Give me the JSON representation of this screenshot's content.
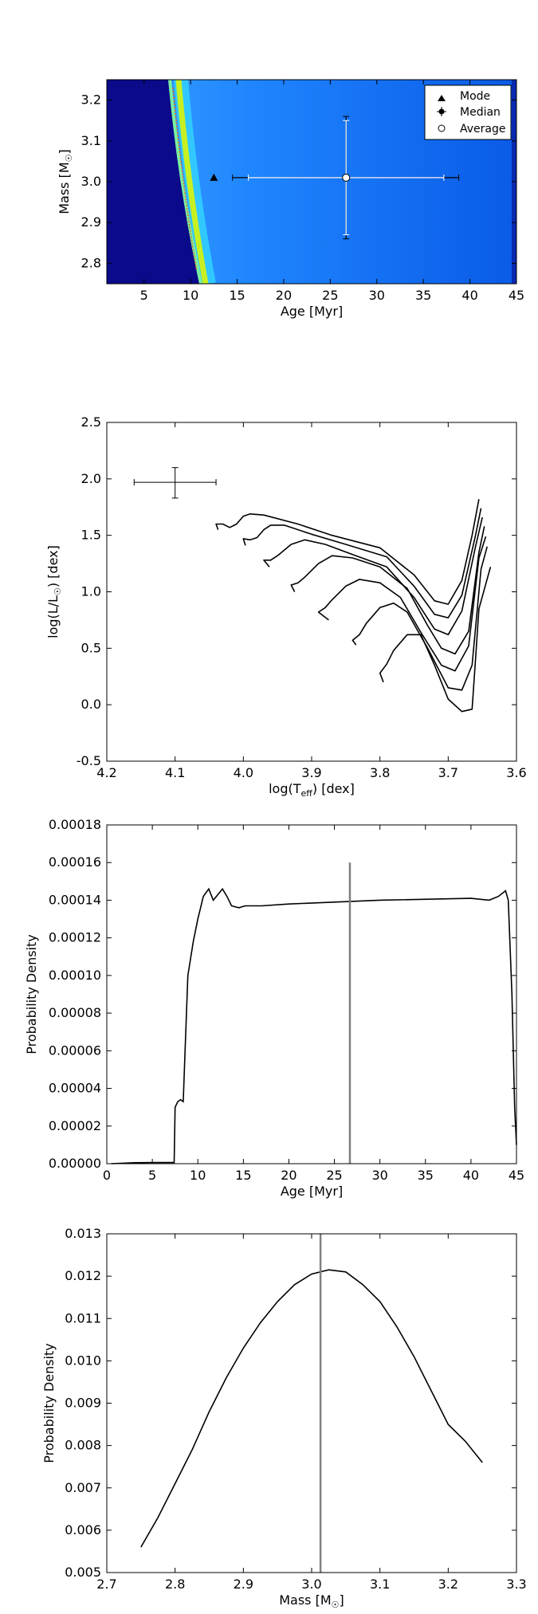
{
  "chart_data": [
    {
      "type": "heatmap",
      "xlabel": "Age [Myr]",
      "ylabel": "Mass [M",
      "ylabel_sub": "☉",
      "ylabel_end": "]",
      "xlim": [
        1,
        45
      ],
      "ylim": [
        2.75,
        3.25
      ],
      "xticks": [
        5,
        10,
        15,
        20,
        25,
        30,
        35,
        40,
        45
      ],
      "yticks": [
        2.8,
        2.9,
        3.0,
        3.1,
        3.2
      ],
      "ytick_format": 1,
      "legend": {
        "placement": "top-right",
        "entries": [
          {
            "label": "Mode",
            "marker": "triangle"
          },
          {
            "label": "Median",
            "marker": "errorbar-dot"
          },
          {
            "label": "Average",
            "marker": "open-circle"
          }
        ]
      },
      "mode": {
        "x": 12.5,
        "y": 3.01
      },
      "median": {
        "x": 26.7,
        "y": 3.01,
        "x_err_inner": [
          16.2,
          37.2
        ],
        "x_err_outer": [
          14.5,
          38.8
        ],
        "y_err_inner": [
          2.87,
          3.15
        ],
        "y_err_outer": [
          2.86,
          3.16
        ]
      },
      "average": {
        "x": 26.7,
        "y": 3.01
      },
      "colors": {
        "background": "#0a0a8a",
        "field": "#1e8cff",
        "ridge": "#c8f020",
        "ridge_core": "#e07020"
      }
    },
    {
      "type": "line",
      "xlabel": "log(T",
      "xlabel_sub": "eff",
      "xlabel_end": ") [dex]",
      "ylabel": "log(L/L",
      "ylabel_sub": "☉",
      "ylabel_end": ") [dex]",
      "xlim": [
        4.2,
        3.6
      ],
      "ylim": [
        -0.5,
        2.5
      ],
      "xticks": [
        4.2,
        4.1,
        4.0,
        3.9,
        3.8,
        3.7,
        3.6
      ],
      "yticks": [
        -0.5,
        0.0,
        0.5,
        1.0,
        1.5,
        2.0,
        2.5
      ],
      "ytick_format": 1,
      "xtick_format": 1,
      "errorbar": {
        "x": 4.1,
        "y": 1.97,
        "x_range": [
          4.16,
          4.04
        ],
        "y_range": [
          1.83,
          2.1
        ]
      },
      "series": [
        {
          "values": [
            [
              4.037,
              1.55
            ],
            [
              4.04,
              1.6
            ],
            [
              4.03,
              1.6
            ],
            [
              4.02,
              1.57
            ],
            [
              4.01,
              1.6
            ],
            [
              4.0,
              1.67
            ],
            [
              3.99,
              1.69
            ],
            [
              3.97,
              1.68
            ],
            [
              3.92,
              1.6
            ],
            [
              3.87,
              1.5
            ],
            [
              3.8,
              1.39
            ],
            [
              3.75,
              1.15
            ],
            [
              3.72,
              0.92
            ],
            [
              3.7,
              0.89
            ],
            [
              3.68,
              1.1
            ],
            [
              3.665,
              1.5
            ],
            [
              3.655,
              1.82
            ]
          ]
        },
        {
          "values": [
            [
              3.997,
              1.41
            ],
            [
              4.0,
              1.47
            ],
            [
              3.99,
              1.46
            ],
            [
              3.98,
              1.48
            ],
            [
              3.97,
              1.55
            ],
            [
              3.96,
              1.59
            ],
            [
              3.94,
              1.59
            ],
            [
              3.9,
              1.51
            ],
            [
              3.85,
              1.42
            ],
            [
              3.79,
              1.31
            ],
            [
              3.75,
              1.05
            ],
            [
              3.72,
              0.8
            ],
            [
              3.7,
              0.77
            ],
            [
              3.68,
              0.97
            ],
            [
              3.66,
              1.5
            ],
            [
              3.652,
              1.74
            ]
          ]
        },
        {
          "values": [
            [
              3.962,
              1.22
            ],
            [
              3.97,
              1.28
            ],
            [
              3.96,
              1.28
            ],
            [
              3.95,
              1.32
            ],
            [
              3.93,
              1.42
            ],
            [
              3.91,
              1.46
            ],
            [
              3.88,
              1.42
            ],
            [
              3.84,
              1.33
            ],
            [
              3.79,
              1.22
            ],
            [
              3.75,
              0.95
            ],
            [
              3.72,
              0.67
            ],
            [
              3.7,
              0.62
            ],
            [
              3.68,
              0.83
            ],
            [
              3.66,
              1.4
            ],
            [
              3.65,
              1.66
            ]
          ]
        },
        {
          "values": [
            [
              3.925,
              1.0
            ],
            [
              3.93,
              1.06
            ],
            [
              3.92,
              1.08
            ],
            [
              3.91,
              1.13
            ],
            [
              3.89,
              1.25
            ],
            [
              3.87,
              1.32
            ],
            [
              3.84,
              1.3
            ],
            [
              3.8,
              1.22
            ],
            [
              3.76,
              1.03
            ],
            [
              3.73,
              0.7
            ],
            [
              3.71,
              0.5
            ],
            [
              3.69,
              0.45
            ],
            [
              3.67,
              0.65
            ],
            [
              3.655,
              1.35
            ],
            [
              3.647,
              1.58
            ]
          ]
        },
        {
          "values": [
            [
              3.875,
              0.75
            ],
            [
              3.89,
              0.82
            ],
            [
              3.88,
              0.86
            ],
            [
              3.87,
              0.93
            ],
            [
              3.85,
              1.05
            ],
            [
              3.83,
              1.11
            ],
            [
              3.8,
              1.08
            ],
            [
              3.77,
              0.95
            ],
            [
              3.74,
              0.64
            ],
            [
              3.71,
              0.35
            ],
            [
              3.69,
              0.3
            ],
            [
              3.67,
              0.52
            ],
            [
              3.655,
              1.3
            ],
            [
              3.645,
              1.49
            ]
          ]
        },
        {
          "values": [
            [
              3.835,
              0.53
            ],
            [
              3.84,
              0.57
            ],
            [
              3.83,
              0.62
            ],
            [
              3.82,
              0.72
            ],
            [
              3.8,
              0.86
            ],
            [
              3.78,
              0.9
            ],
            [
              3.76,
              0.82
            ],
            [
              3.73,
              0.5
            ],
            [
              3.7,
              0.15
            ],
            [
              3.68,
              0.13
            ],
            [
              3.665,
              0.35
            ],
            [
              3.652,
              1.2
            ],
            [
              3.643,
              1.4
            ]
          ]
        },
        {
          "values": [
            [
              3.795,
              0.2
            ],
            [
              3.8,
              0.28
            ],
            [
              3.79,
              0.36
            ],
            [
              3.78,
              0.48
            ],
            [
              3.76,
              0.62
            ],
            [
              3.74,
              0.62
            ],
            [
              3.72,
              0.35
            ],
            [
              3.7,
              0.05
            ],
            [
              3.68,
              -0.06
            ],
            [
              3.665,
              -0.04
            ],
            [
              3.66,
              0.4
            ],
            [
              3.655,
              0.85
            ],
            [
              3.638,
              1.22
            ]
          ]
        }
      ],
      "colors": {
        "line": "#000000"
      }
    },
    {
      "type": "line",
      "xlabel": "Age [Myr]",
      "ylabel": "Probability Density",
      "xlim": [
        0,
        45
      ],
      "ylim": [
        0,
        0.00018
      ],
      "xticks": [
        0,
        5,
        10,
        15,
        20,
        25,
        30,
        35,
        40,
        45
      ],
      "yticks": [
        0,
        2e-05,
        4e-05,
        6e-05,
        8e-05,
        0.0001,
        0.00012,
        0.00014,
        0.00016,
        0.00018
      ],
      "ytick_format": 5,
      "vline": {
        "x": 26.7,
        "y_top": 0.00016
      },
      "values": [
        [
          0.5,
          0.0
        ],
        [
          3.0,
          5e-07
        ],
        [
          5.0,
          6e-07
        ],
        [
          7.4,
          6e-07
        ],
        [
          7.5,
          3e-05
        ],
        [
          7.8,
          3.3e-05
        ],
        [
          8.1,
          3.4e-05
        ],
        [
          8.4,
          3.3e-05
        ],
        [
          8.6,
          6e-05
        ],
        [
          8.9,
          0.0001
        ],
        [
          9.5,
          0.000118
        ],
        [
          10.0,
          0.00013
        ],
        [
          10.6,
          0.000142
        ],
        [
          11.2,
          0.000146
        ],
        [
          11.7,
          0.00014
        ],
        [
          12.2,
          0.000143
        ],
        [
          12.7,
          0.000146
        ],
        [
          13.2,
          0.000142
        ],
        [
          13.7,
          0.000137
        ],
        [
          14.5,
          0.000136
        ],
        [
          15.2,
          0.000137
        ],
        [
          17.0,
          0.000137
        ],
        [
          20.0,
          0.000138
        ],
        [
          30.0,
          0.00014
        ],
        [
          40.0,
          0.000141
        ],
        [
          42.0,
          0.00014
        ],
        [
          43.0,
          0.000142
        ],
        [
          43.8,
          0.000145
        ],
        [
          44.1,
          0.00014
        ],
        [
          44.5,
          9e-05
        ],
        [
          44.8,
          3e-05
        ],
        [
          45.0,
          1e-05
        ]
      ],
      "colors": {
        "line": "#000000",
        "vline": "#808080"
      }
    },
    {
      "type": "line",
      "xlabel": "Mass [M",
      "xlabel_sub": "☉",
      "xlabel_end": "]",
      "ylabel": "Probability Density",
      "xlim": [
        2.7,
        3.3
      ],
      "ylim": [
        0.005,
        0.013
      ],
      "xticks": [
        2.7,
        2.8,
        2.9,
        3.0,
        3.1,
        3.2,
        3.3
      ],
      "yticks": [
        0.005,
        0.006,
        0.007,
        0.008,
        0.009,
        0.01,
        0.011,
        0.012,
        0.013
      ],
      "ytick_format": 3,
      "xtick_format": 1,
      "vline": {
        "x": 3.013
      },
      "values": [
        [
          2.75,
          0.0056
        ],
        [
          2.775,
          0.0063
        ],
        [
          2.8,
          0.0071
        ],
        [
          2.825,
          0.0079
        ],
        [
          2.85,
          0.0088
        ],
        [
          2.875,
          0.0096
        ],
        [
          2.9,
          0.0103
        ],
        [
          2.925,
          0.0109
        ],
        [
          2.95,
          0.0114
        ],
        [
          2.975,
          0.0118
        ],
        [
          3.0,
          0.01205
        ],
        [
          3.025,
          0.01215
        ],
        [
          3.05,
          0.0121
        ],
        [
          3.075,
          0.0118
        ],
        [
          3.1,
          0.0114
        ],
        [
          3.125,
          0.0108
        ],
        [
          3.15,
          0.0101
        ],
        [
          3.175,
          0.0093
        ],
        [
          3.2,
          0.0085
        ],
        [
          3.225,
          0.0081
        ],
        [
          3.25,
          0.0076
        ]
      ],
      "colors": {
        "line": "#000000",
        "vline": "#808080"
      }
    }
  ]
}
